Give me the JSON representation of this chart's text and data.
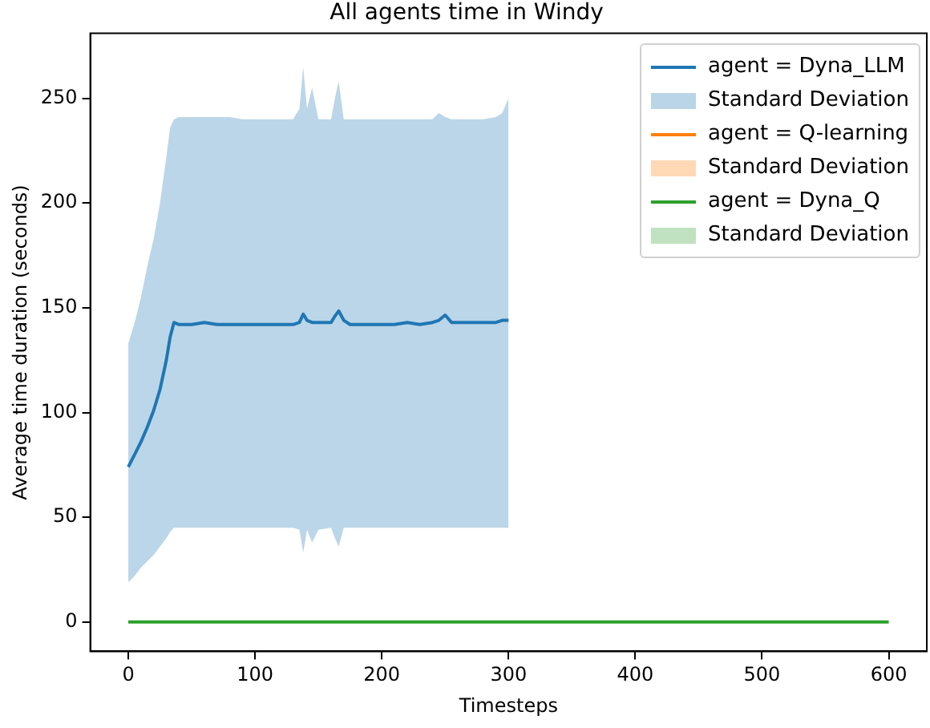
{
  "chart_data": {
    "type": "line",
    "title": "All agents time in Windy",
    "xlabel": "Timesteps",
    "ylabel": "Average time duration (seconds)",
    "xlim": [
      -30,
      630
    ],
    "xticks": [
      0,
      100,
      200,
      300,
      400,
      500,
      600
    ],
    "ylim": [
      -14,
      281
    ],
    "yticks": [
      0,
      50,
      100,
      150,
      200,
      250
    ],
    "grid": false,
    "legend": "top right",
    "marker": "none",
    "line_style": "solid",
    "series": [
      {
        "name": "agent = Dyna_LLM",
        "type": "line",
        "color": "#1f77b4",
        "x": [
          0,
          5,
          10,
          15,
          20,
          25,
          30,
          33,
          36,
          40,
          50,
          60,
          70,
          80,
          90,
          100,
          110,
          120,
          130,
          135,
          138,
          141,
          145,
          150,
          160,
          163,
          166,
          170,
          175,
          180,
          190,
          200,
          210,
          220,
          230,
          240,
          245,
          250,
          255,
          260,
          270,
          280,
          290,
          295,
          300
        ],
        "values": [
          74,
          80,
          86,
          93,
          101,
          111,
          125,
          136,
          143,
          142,
          142,
          143,
          142,
          142,
          142,
          142,
          142,
          142,
          142,
          143,
          147,
          144,
          143,
          143,
          143,
          146,
          148.5,
          144,
          142,
          142,
          142,
          142,
          142,
          143,
          142,
          143,
          144,
          146.5,
          143,
          143,
          143,
          143,
          143,
          144,
          144
        ],
        "upper": [
          133,
          143,
          155,
          170,
          183,
          200,
          222,
          236,
          240,
          241,
          241,
          241,
          241,
          241,
          240,
          240,
          240,
          240,
          240,
          245,
          265,
          245,
          255,
          240,
          240,
          250,
          258,
          240,
          240,
          240,
          240,
          240,
          240,
          240,
          240,
          240,
          243,
          241,
          240,
          240,
          240,
          240,
          241,
          243,
          250
        ],
        "lower": [
          19,
          22,
          26,
          29,
          32,
          36,
          40,
          43,
          45,
          45,
          45,
          45,
          45,
          45,
          45,
          45,
          45,
          45,
          45,
          44,
          33,
          44,
          38,
          44,
          45,
          40,
          36,
          45,
          45,
          45,
          45,
          45,
          45,
          45,
          45,
          45,
          45,
          45,
          45,
          45,
          45,
          45,
          45,
          45,
          45
        ]
      },
      {
        "name": "Standard Deviation",
        "type": "area",
        "color": "#bad4e8"
      },
      {
        "name": "agent = Q-learning",
        "type": "line",
        "color": "#ff7f0e"
      },
      {
        "name": "Standard Deviation",
        "type": "area",
        "color": "#ffd8b6"
      },
      {
        "name": "agent = Dyna_Q",
        "type": "line",
        "color": "#2ca02c",
        "x": [
          0,
          600
        ],
        "values": [
          0,
          0
        ]
      },
      {
        "name": "Standard Deviation",
        "type": "area",
        "color": "#c0e2c0"
      }
    ]
  }
}
